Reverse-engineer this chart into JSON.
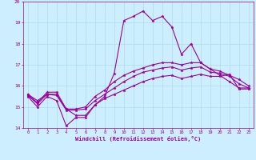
{
  "xlabel": "Windchill (Refroidissement éolien,°C)",
  "bg_color": "#cceeff",
  "line_color": "#990099",
  "grid_color": "#aaddee",
  "xlim": [
    -0.5,
    23.5
  ],
  "ylim": [
    14,
    20
  ],
  "yticks": [
    14,
    15,
    16,
    17,
    18,
    19,
    20
  ],
  "xticks": [
    0,
    1,
    2,
    3,
    4,
    5,
    6,
    7,
    8,
    9,
    10,
    11,
    12,
    13,
    14,
    15,
    16,
    17,
    18,
    19,
    20,
    21,
    22,
    23
  ],
  "line1": [
    15.6,
    15.3,
    15.6,
    15.6,
    14.9,
    14.6,
    14.6,
    15.1,
    15.5,
    16.6,
    19.1,
    19.3,
    19.55,
    19.1,
    19.3,
    18.8,
    17.5,
    18.0,
    17.1,
    16.8,
    16.5,
    16.2,
    15.9,
    15.9
  ],
  "line2": [
    15.6,
    15.2,
    15.7,
    15.7,
    14.9,
    14.9,
    15.0,
    15.5,
    15.8,
    16.2,
    16.5,
    16.7,
    16.85,
    17.0,
    17.1,
    17.1,
    17.0,
    17.1,
    17.1,
    16.8,
    16.7,
    16.5,
    16.3,
    16.0
  ],
  "line3": [
    15.55,
    15.15,
    15.6,
    15.55,
    14.85,
    14.85,
    14.9,
    15.3,
    15.6,
    15.9,
    16.2,
    16.45,
    16.65,
    16.75,
    16.85,
    16.9,
    16.75,
    16.85,
    16.9,
    16.65,
    16.6,
    16.45,
    16.1,
    15.9
  ],
  "line4": [
    15.5,
    15.0,
    15.5,
    15.3,
    14.1,
    14.5,
    14.5,
    15.1,
    15.4,
    15.6,
    15.8,
    16.0,
    16.2,
    16.35,
    16.45,
    16.5,
    16.35,
    16.45,
    16.55,
    16.45,
    16.45,
    16.55,
    15.85,
    15.85
  ]
}
